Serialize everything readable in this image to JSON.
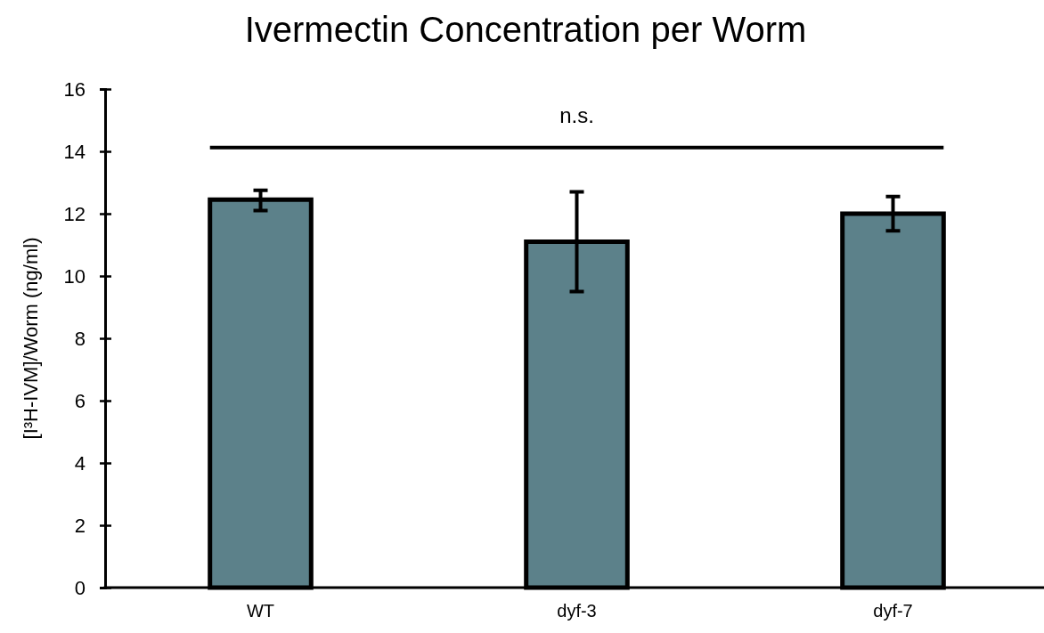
{
  "chart_data": {
    "type": "bar",
    "title": "Ivermectin Concentration per Worm",
    "ylabel": "[I³H-IVM]/Worm (ng/ml)",
    "categories": [
      "WT",
      "dyf-3",
      "dyf-7"
    ],
    "values": [
      12.45,
      11.1,
      12.0
    ],
    "errors": [
      [
        12.1,
        12.75
      ],
      [
        9.5,
        12.7
      ],
      [
        11.45,
        12.55
      ]
    ],
    "color": "#5c818a",
    "ylim": [
      0,
      16
    ],
    "yticks": [
      0,
      2,
      4,
      6,
      8,
      10,
      12,
      14,
      16
    ],
    "annotations": [
      "n.s."
    ]
  }
}
